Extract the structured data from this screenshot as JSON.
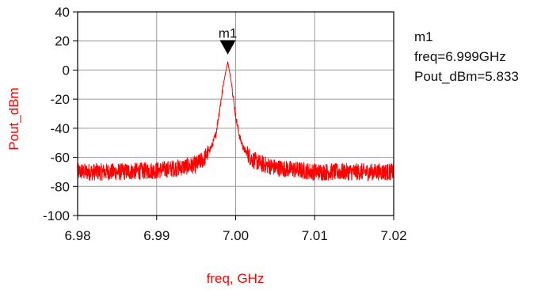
{
  "chart_data": {
    "type": "line",
    "xlabel": "freq, GHz",
    "ylabel": "Pout_dBm",
    "xlim": [
      6.98,
      7.02
    ],
    "ylim": [
      -100,
      40
    ],
    "x_ticks": [
      "6.98",
      "6.99",
      "7.00",
      "7.01",
      "7.02"
    ],
    "y_ticks": [
      "40",
      "20",
      "0",
      "-20",
      "-40",
      "-60",
      "-80",
      "-100"
    ],
    "grid": true,
    "series": [
      {
        "color": "#ff0000",
        "x": [
          6.98,
          6.985,
          6.99,
          6.993,
          6.995,
          6.996,
          6.997,
          6.9975,
          6.998,
          6.9985,
          6.999,
          6.9995,
          7.0,
          7.0005,
          7.001,
          7.002,
          7.003,
          7.005,
          7.01,
          7.015,
          7.02
        ],
        "values": [
          -70,
          -70,
          -69,
          -67,
          -65,
          -61,
          -52,
          -44,
          -26,
          -8,
          5.833,
          -10,
          -32,
          -46,
          -54,
          -61,
          -64,
          -67,
          -70,
          -70,
          -70
        ]
      }
    ],
    "marker": {
      "name": "m1",
      "x": 6.999,
      "y": 5.833,
      "readout": [
        "m1",
        "freq=6.999GHz",
        "Pout_dBm=5.833"
      ]
    }
  }
}
